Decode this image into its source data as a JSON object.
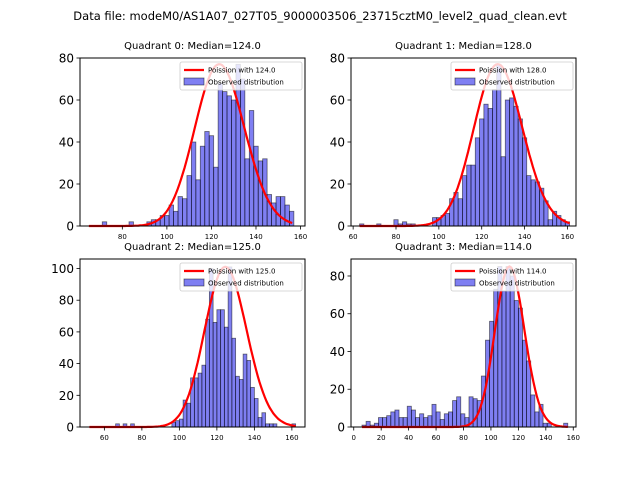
{
  "suptitle": "Data file: modeM0/AS1A07_027T05_9000003506_23715cztM0_level2_quad_clean.evt",
  "chart_data": [
    {
      "type": "bar",
      "title": "Quadrant 0: Median=124.0",
      "xlim": [
        61,
        162
      ],
      "ylim": [
        0,
        80
      ],
      "xticks": [
        80,
        100,
        120,
        140,
        160
      ],
      "yticks": [
        0,
        20,
        40,
        60,
        80
      ],
      "legend": [
        "Poission with 124.0",
        "Observed distribution"
      ],
      "legend_position": "upper right",
      "bin_width": 2,
      "bin_starts": [
        65,
        67,
        69,
        71,
        73,
        75,
        77,
        79,
        81,
        83,
        85,
        87,
        89,
        91,
        93,
        95,
        97,
        99,
        101,
        103,
        105,
        107,
        109,
        111,
        113,
        115,
        117,
        119,
        121,
        123,
        125,
        127,
        129,
        131,
        133,
        135,
        137,
        139,
        141,
        143,
        145,
        147,
        149,
        151,
        153,
        155
      ],
      "values": [
        0,
        0,
        0,
        2,
        0,
        0,
        0,
        0,
        0,
        2,
        0,
        0,
        0,
        2,
        3,
        3,
        5,
        5,
        10,
        7,
        14,
        13,
        24,
        40,
        22,
        38,
        45,
        43,
        28,
        68,
        64,
        62,
        60,
        77,
        70,
        32,
        55,
        38,
        31,
        32,
        15,
        11,
        14,
        14,
        10,
        7
      ],
      "extra_bars": {
        "157": 2,
        "155": 7
      },
      "poisson_mean": 124.0,
      "poisson_scale": 1.0
    },
    {
      "type": "bar",
      "title": "Quadrant 1: Median=128.0",
      "xlim": [
        59,
        164
      ],
      "ylim": [
        0,
        80
      ],
      "xticks": [
        60,
        80,
        100,
        120,
        140,
        160
      ],
      "yticks": [
        0,
        20,
        40,
        60,
        80
      ],
      "legend": [
        "Poission with 128.0",
        "Observed distribution"
      ],
      "legend_position": "upper right",
      "bin_width": 2,
      "bin_starts": [
        63,
        65,
        67,
        69,
        71,
        73,
        75,
        77,
        79,
        81,
        83,
        85,
        87,
        89,
        91,
        93,
        95,
        97,
        99,
        101,
        103,
        105,
        107,
        109,
        111,
        113,
        115,
        117,
        119,
        121,
        123,
        125,
        127,
        129,
        131,
        133,
        135,
        137,
        139,
        141,
        143,
        145,
        147,
        149,
        151,
        153,
        155,
        157,
        159
      ],
      "values": [
        1,
        0,
        0,
        0,
        1,
        0,
        0,
        0,
        3,
        1,
        2,
        1,
        1,
        0,
        0,
        0,
        0,
        4,
        4,
        5,
        6,
        13,
        16,
        13,
        24,
        29,
        29,
        42,
        51,
        58,
        56,
        65,
        77,
        33,
        60,
        61,
        57,
        51,
        42,
        24,
        22,
        21,
        18,
        12,
        3,
        7,
        5,
        3,
        2
      ],
      "poisson_mean": 128.0
    },
    {
      "type": "bar",
      "title": "Quadrant 2: Median=125.0",
      "xlim": [
        47,
        167
      ],
      "ylim": [
        0,
        106
      ],
      "xticks": [
        60,
        80,
        100,
        120,
        140,
        160
      ],
      "yticks": [
        0,
        20,
        40,
        60,
        80,
        100
      ],
      "legend": [
        "Poission with 125.0",
        "Observed distribution"
      ],
      "legend_position": "upper right",
      "bin_width": 2,
      "bin_starts": [
        52,
        54,
        56,
        58,
        60,
        62,
        64,
        66,
        68,
        70,
        72,
        74,
        76,
        78,
        80,
        82,
        84,
        86,
        88,
        90,
        92,
        94,
        96,
        98,
        100,
        102,
        104,
        106,
        108,
        110,
        112,
        114,
        116,
        118,
        120,
        122,
        124,
        126,
        128,
        130,
        132,
        134,
        136,
        138,
        140,
        142,
        144,
        146,
        148,
        150,
        152,
        154,
        156,
        158,
        160
      ],
      "values": [
        0,
        0,
        0,
        0,
        0,
        0,
        0,
        2,
        0,
        2,
        0,
        2,
        0,
        0,
        0,
        0,
        0,
        0,
        0,
        0,
        0,
        0,
        3,
        4,
        5,
        17,
        15,
        31,
        31,
        34,
        39,
        68,
        100,
        66,
        74,
        74,
        63,
        101,
        56,
        32,
        30,
        46,
        42,
        25,
        18,
        6,
        9,
        2,
        2,
        2,
        0,
        0,
        0,
        0,
        2
      ],
      "poisson_mean": 125.0
    },
    {
      "type": "bar",
      "title": "Quadrant 3: Median=114.0",
      "xlim": [
        -2,
        162
      ],
      "ylim": [
        0,
        89
      ],
      "xticks": [
        0,
        20,
        40,
        60,
        80,
        100,
        120,
        140,
        160
      ],
      "yticks": [
        0,
        20,
        40,
        60,
        80
      ],
      "legend": [
        "Poission with 114.0",
        "Observed distribution"
      ],
      "legend_position": "upper right",
      "bin_width": 3,
      "bin_starts": [
        6,
        9,
        12,
        15,
        18,
        21,
        24,
        27,
        30,
        33,
        36,
        39,
        42,
        45,
        48,
        51,
        54,
        57,
        60,
        63,
        66,
        69,
        72,
        75,
        78,
        81,
        84,
        87,
        90,
        93,
        96,
        99,
        102,
        105,
        108,
        111,
        114,
        117,
        120,
        123,
        126,
        129,
        132,
        135,
        138,
        141,
        144,
        147,
        150,
        153
      ],
      "values": [
        1,
        3,
        1,
        2,
        5,
        5,
        6,
        8,
        9,
        5,
        5,
        11,
        9,
        5,
        7,
        5,
        6,
        12,
        8,
        4,
        7,
        8,
        14,
        16,
        7,
        5,
        16,
        15,
        14,
        27,
        46,
        56,
        73,
        85,
        72,
        85,
        80,
        67,
        63,
        46,
        35,
        17,
        8,
        12,
        2,
        2,
        0,
        0,
        0,
        2
      ],
      "poisson_mean": 114.0
    }
  ]
}
